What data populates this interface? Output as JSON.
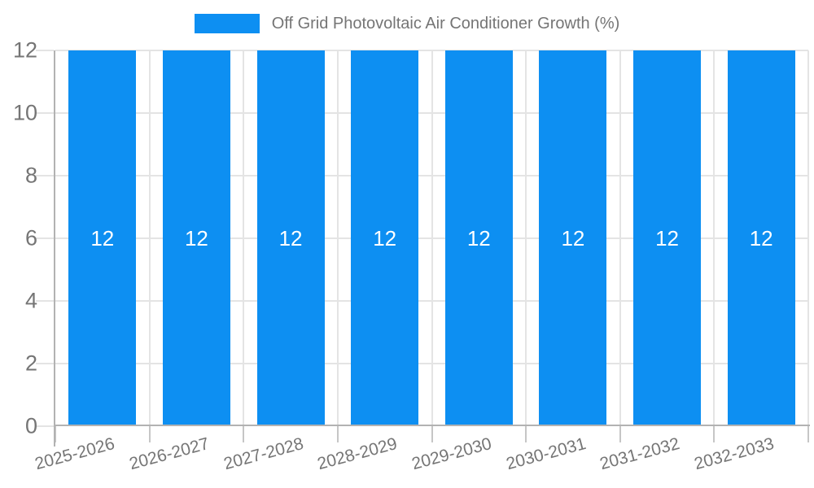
{
  "legend": {
    "label": "Off Grid Photovoltaic Air Conditioner Growth (%)"
  },
  "chart_data": {
    "type": "bar",
    "title": "Off Grid Photovoltaic Air Conditioner Growth (%)",
    "series_name": "Off Grid Photovoltaic Air Conditioner Growth (%)",
    "categories": [
      "2025-2026",
      "2026-2027",
      "2027-2028",
      "2028-2029",
      "2029-2030",
      "2030-2031",
      "2031-2032",
      "2032-2033"
    ],
    "values": [
      12,
      12,
      12,
      12,
      12,
      12,
      12,
      12
    ],
    "bar_labels": [
      "12",
      "12",
      "12",
      "12",
      "12",
      "12",
      "12",
      "12"
    ],
    "xlabel": "",
    "ylabel": "",
    "ylim": [
      0,
      12
    ],
    "yticks": [
      0,
      2,
      4,
      6,
      8,
      10,
      12
    ],
    "grid": true,
    "legend_position": "top-center",
    "x_tick_rotation_deg": -15,
    "colors": {
      "bar": "#0d8ff2",
      "bar_value_text": "#ffffff",
      "axis_line": "#b2b2b2",
      "gridline": "#e4e4e4",
      "tick": "#c6c6c6",
      "axis_label_text": "#757575",
      "legend_text": "#757575",
      "background": "#ffffff"
    }
  }
}
